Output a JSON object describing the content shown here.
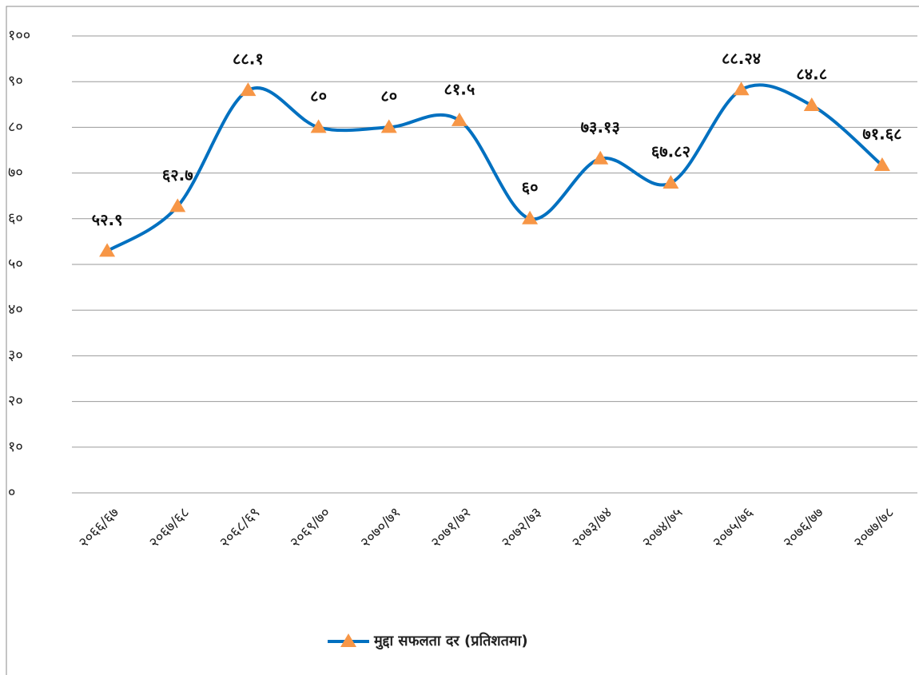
{
  "chart_data": {
    "type": "line",
    "categories": [
      "२०६६/६७",
      "२०६७/६८",
      "२०६८/६९",
      "२०६९/७०",
      "२०७०/७१",
      "२०७१/७२",
      "२०७२/७३",
      "२०७३/७४",
      "२०७४/७५",
      "२०७५/७६",
      "२०७६/७७",
      "२०७७/७८"
    ],
    "series": [
      {
        "name": "मुद्दा सफलता दर (प्रतिशतमा)",
        "color": "#0070c0",
        "marker_color": "#f79646",
        "values": [
          52.9,
          62.7,
          88.1,
          80,
          80,
          81.5,
          60,
          73.13,
          67.82,
          88.24,
          84.8,
          71.68
        ],
        "value_labels": [
          "५२.९",
          "६२.७",
          "८८.१",
          "८०",
          "८०",
          "८१.५",
          "६०",
          "७३.१३",
          "६७.८२",
          "८८.२४",
          "८४.८",
          "७१.६८"
        ]
      }
    ],
    "ylim": [
      0,
      100
    ],
    "yticks": [
      {
        "value": 0,
        "label": "०"
      },
      {
        "value": 10,
        "label": "१०"
      },
      {
        "value": 20,
        "label": "२०"
      },
      {
        "value": 30,
        "label": "३०"
      },
      {
        "value": 40,
        "label": "४०"
      },
      {
        "value": 50,
        "label": "५०"
      },
      {
        "value": 60,
        "label": "६०"
      },
      {
        "value": 70,
        "label": "७०"
      },
      {
        "value": 80,
        "label": "८०"
      },
      {
        "value": 90,
        "label": "९०"
      },
      {
        "value": 100,
        "label": "१००"
      }
    ],
    "grid": true,
    "legend": "bottom",
    "smooth": true
  }
}
